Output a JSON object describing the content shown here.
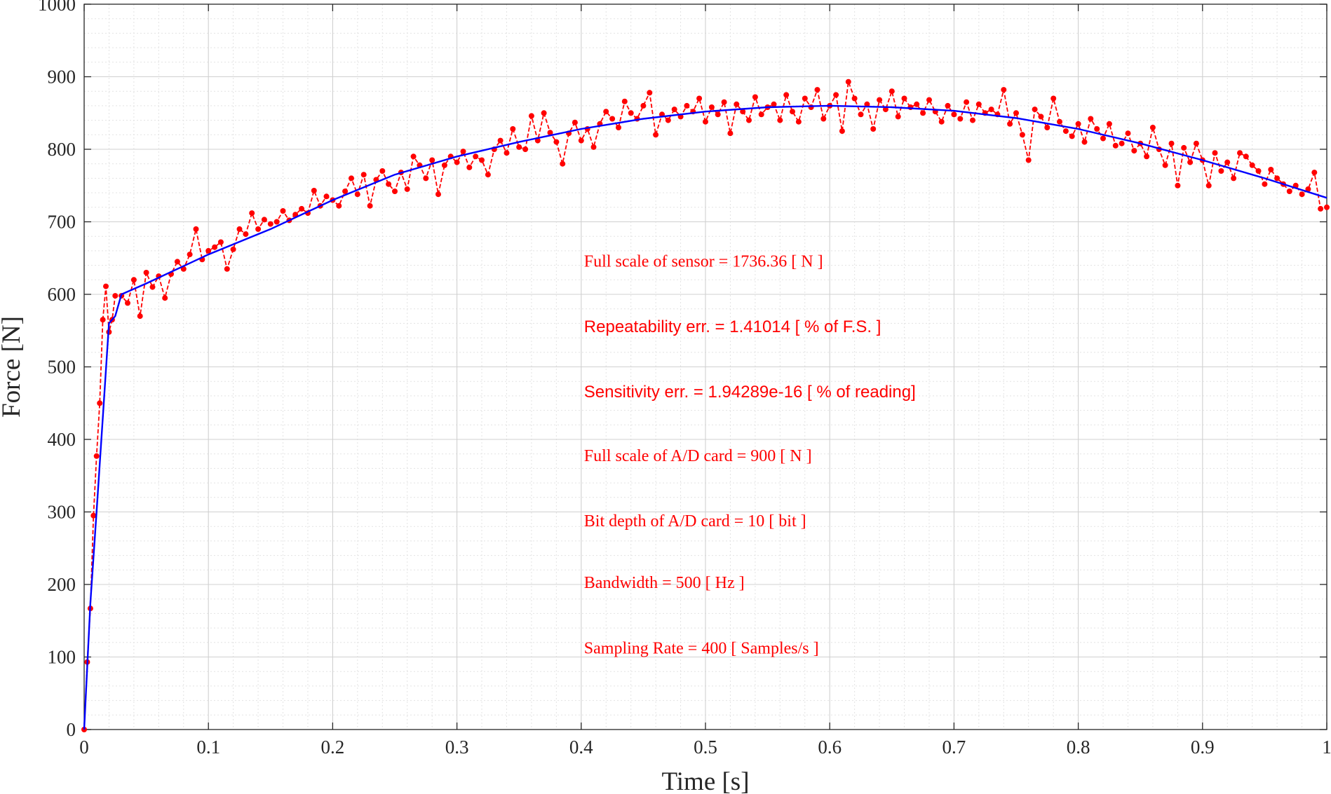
{
  "chart_data": {
    "type": "line",
    "xlabel": "Time [s]",
    "ylabel": "Force [N]",
    "xlim": [
      0,
      1
    ],
    "ylim": [
      0,
      1000
    ],
    "x_ticks": [
      "0",
      "0.1",
      "0.2",
      "0.3",
      "0.4",
      "0.5",
      "0.6",
      "0.7",
      "0.8",
      "0.9",
      "1"
    ],
    "y_ticks": [
      "0",
      "100",
      "200",
      "300",
      "400",
      "500",
      "600",
      "700",
      "800",
      "900",
      "1000"
    ],
    "grid": true,
    "minor_grid": true,
    "legend": "none",
    "colors": {
      "true_signal": "#0000ff",
      "measured": "#ff0000",
      "annotations": "#ff0000",
      "axes": "#262626"
    },
    "series": [
      {
        "style": "solid line",
        "color": "#0000ff",
        "points": [
          [
            0.0,
            0
          ],
          [
            0.005,
            175
          ],
          [
            0.01,
            300
          ],
          [
            0.015,
            430
          ],
          [
            0.02,
            560
          ],
          [
            0.025,
            570
          ],
          [
            0.03,
            600
          ],
          [
            0.05,
            615
          ],
          [
            0.1,
            655
          ],
          [
            0.15,
            690
          ],
          [
            0.2,
            730
          ],
          [
            0.25,
            765
          ],
          [
            0.3,
            790
          ],
          [
            0.35,
            810
          ],
          [
            0.4,
            828
          ],
          [
            0.45,
            842
          ],
          [
            0.5,
            852
          ],
          [
            0.55,
            858
          ],
          [
            0.6,
            860
          ],
          [
            0.65,
            858
          ],
          [
            0.7,
            853
          ],
          [
            0.75,
            843
          ],
          [
            0.8,
            828
          ],
          [
            0.85,
            808
          ],
          [
            0.9,
            785
          ],
          [
            0.95,
            760
          ],
          [
            1.0,
            733
          ]
        ]
      },
      {
        "style": "dashed line with dot markers",
        "color": "#ff0000",
        "points": [
          [
            0.0,
            0
          ],
          [
            0.0025,
            93
          ],
          [
            0.005,
            167
          ],
          [
            0.0075,
            295
          ],
          [
            0.01,
            377
          ],
          [
            0.0125,
            450
          ],
          [
            0.015,
            565
          ],
          [
            0.0175,
            611
          ],
          [
            0.02,
            548
          ],
          [
            0.0225,
            565
          ],
          [
            0.025,
            598
          ],
          [
            0.03,
            598
          ],
          [
            0.035,
            588
          ],
          [
            0.04,
            620
          ],
          [
            0.045,
            570
          ],
          [
            0.05,
            630
          ],
          [
            0.055,
            610
          ],
          [
            0.06,
            625
          ],
          [
            0.065,
            595
          ],
          [
            0.07,
            628
          ],
          [
            0.075,
            645
          ],
          [
            0.08,
            635
          ],
          [
            0.085,
            655
          ],
          [
            0.09,
            690
          ],
          [
            0.095,
            648
          ],
          [
            0.1,
            660
          ],
          [
            0.105,
            665
          ],
          [
            0.11,
            672
          ],
          [
            0.115,
            635
          ],
          [
            0.12,
            662
          ],
          [
            0.125,
            690
          ],
          [
            0.13,
            683
          ],
          [
            0.135,
            712
          ],
          [
            0.14,
            690
          ],
          [
            0.145,
            703
          ],
          [
            0.15,
            697
          ],
          [
            0.155,
            700
          ],
          [
            0.16,
            715
          ],
          [
            0.165,
            702
          ],
          [
            0.17,
            710
          ],
          [
            0.175,
            718
          ],
          [
            0.18,
            712
          ],
          [
            0.185,
            743
          ],
          [
            0.19,
            722
          ],
          [
            0.195,
            735
          ],
          [
            0.2,
            730
          ],
          [
            0.205,
            722
          ],
          [
            0.21,
            742
          ],
          [
            0.215,
            760
          ],
          [
            0.22,
            738
          ],
          [
            0.225,
            765
          ],
          [
            0.23,
            722
          ],
          [
            0.235,
            758
          ],
          [
            0.24,
            770
          ],
          [
            0.245,
            752
          ],
          [
            0.25,
            742
          ],
          [
            0.255,
            768
          ],
          [
            0.26,
            745
          ],
          [
            0.265,
            790
          ],
          [
            0.27,
            778
          ],
          [
            0.275,
            760
          ],
          [
            0.28,
            785
          ],
          [
            0.285,
            738
          ],
          [
            0.29,
            778
          ],
          [
            0.295,
            790
          ],
          [
            0.3,
            782
          ],
          [
            0.305,
            797
          ],
          [
            0.31,
            775
          ],
          [
            0.315,
            790
          ],
          [
            0.32,
            785
          ],
          [
            0.325,
            765
          ],
          [
            0.33,
            800
          ],
          [
            0.335,
            812
          ],
          [
            0.34,
            795
          ],
          [
            0.345,
            828
          ],
          [
            0.35,
            803
          ],
          [
            0.355,
            800
          ],
          [
            0.36,
            846
          ],
          [
            0.365,
            812
          ],
          [
            0.37,
            850
          ],
          [
            0.375,
            823
          ],
          [
            0.38,
            810
          ],
          [
            0.385,
            780
          ],
          [
            0.39,
            822
          ],
          [
            0.395,
            837
          ],
          [
            0.4,
            812
          ],
          [
            0.405,
            828
          ],
          [
            0.41,
            803
          ],
          [
            0.415,
            835
          ],
          [
            0.42,
            852
          ],
          [
            0.425,
            842
          ],
          [
            0.43,
            830
          ],
          [
            0.435,
            866
          ],
          [
            0.44,
            850
          ],
          [
            0.445,
            842
          ],
          [
            0.45,
            860
          ],
          [
            0.455,
            878
          ],
          [
            0.46,
            820
          ],
          [
            0.465,
            848
          ],
          [
            0.47,
            840
          ],
          [
            0.475,
            855
          ],
          [
            0.48,
            845
          ],
          [
            0.485,
            860
          ],
          [
            0.49,
            852
          ],
          [
            0.495,
            870
          ],
          [
            0.5,
            838
          ],
          [
            0.505,
            858
          ],
          [
            0.51,
            848
          ],
          [
            0.515,
            865
          ],
          [
            0.52,
            822
          ],
          [
            0.525,
            862
          ],
          [
            0.53,
            852
          ],
          [
            0.535,
            840
          ],
          [
            0.54,
            872
          ],
          [
            0.545,
            848
          ],
          [
            0.55,
            858
          ],
          [
            0.555,
            862
          ],
          [
            0.56,
            840
          ],
          [
            0.565,
            875
          ],
          [
            0.57,
            852
          ],
          [
            0.575,
            838
          ],
          [
            0.58,
            870
          ],
          [
            0.585,
            858
          ],
          [
            0.59,
            882
          ],
          [
            0.595,
            842
          ],
          [
            0.6,
            860
          ],
          [
            0.605,
            875
          ],
          [
            0.61,
            825
          ],
          [
            0.615,
            893
          ],
          [
            0.62,
            870
          ],
          [
            0.625,
            848
          ],
          [
            0.63,
            862
          ],
          [
            0.635,
            828
          ],
          [
            0.64,
            868
          ],
          [
            0.645,
            855
          ],
          [
            0.65,
            880
          ],
          [
            0.655,
            845
          ],
          [
            0.66,
            870
          ],
          [
            0.665,
            858
          ],
          [
            0.67,
            862
          ],
          [
            0.675,
            850
          ],
          [
            0.68,
            868
          ],
          [
            0.685,
            852
          ],
          [
            0.69,
            838
          ],
          [
            0.695,
            860
          ],
          [
            0.7,
            848
          ],
          [
            0.705,
            842
          ],
          [
            0.71,
            865
          ],
          [
            0.715,
            840
          ],
          [
            0.72,
            862
          ],
          [
            0.725,
            850
          ],
          [
            0.73,
            855
          ],
          [
            0.735,
            848
          ],
          [
            0.74,
            882
          ],
          [
            0.745,
            835
          ],
          [
            0.75,
            850
          ],
          [
            0.755,
            820
          ],
          [
            0.76,
            785
          ],
          [
            0.765,
            855
          ],
          [
            0.77,
            845
          ],
          [
            0.775,
            830
          ],
          [
            0.78,
            870
          ],
          [
            0.785,
            838
          ],
          [
            0.79,
            825
          ],
          [
            0.795,
            818
          ],
          [
            0.8,
            835
          ],
          [
            0.805,
            810
          ],
          [
            0.81,
            842
          ],
          [
            0.815,
            828
          ],
          [
            0.82,
            815
          ],
          [
            0.825,
            835
          ],
          [
            0.83,
            805
          ],
          [
            0.835,
            808
          ],
          [
            0.84,
            822
          ],
          [
            0.845,
            798
          ],
          [
            0.85,
            808
          ],
          [
            0.855,
            790
          ],
          [
            0.86,
            830
          ],
          [
            0.865,
            800
          ],
          [
            0.87,
            778
          ],
          [
            0.875,
            808
          ],
          [
            0.88,
            750
          ],
          [
            0.885,
            802
          ],
          [
            0.89,
            782
          ],
          [
            0.895,
            808
          ],
          [
            0.9,
            785
          ],
          [
            0.905,
            750
          ],
          [
            0.91,
            795
          ],
          [
            0.915,
            770
          ],
          [
            0.92,
            782
          ],
          [
            0.925,
            760
          ],
          [
            0.93,
            795
          ],
          [
            0.935,
            790
          ],
          [
            0.94,
            778
          ],
          [
            0.945,
            770
          ],
          [
            0.95,
            752
          ],
          [
            0.955,
            772
          ],
          [
            0.96,
            760
          ],
          [
            0.965,
            752
          ],
          [
            0.97,
            742
          ],
          [
            0.975,
            750
          ],
          [
            0.98,
            738
          ],
          [
            0.985,
            745
          ],
          [
            0.99,
            768
          ],
          [
            0.995,
            718
          ],
          [
            1.0,
            720
          ]
        ]
      }
    ],
    "annotations": [
      {
        "text": "Full scale of sensor = 1736.36 [ N ]",
        "x": 0.4,
        "y": 638,
        "font": "serif"
      },
      {
        "text": "Repeatability err. = 1.41014 [ % of F.S. ]",
        "x": 0.4,
        "y": 548,
        "font": "sans"
      },
      {
        "text": "Sensitivity err. = 1.94289e-16 [ % of reading]",
        "x": 0.4,
        "y": 458,
        "font": "sans"
      },
      {
        "text": "Full scale of A/D card = 900 [ N ]",
        "x": 0.4,
        "y": 370,
        "font": "serif"
      },
      {
        "text": "Bit depth of A/D card = 10 [ bit ]",
        "x": 0.4,
        "y": 280,
        "font": "serif"
      },
      {
        "text": "Bandwidth = 500 [ Hz ]",
        "x": 0.4,
        "y": 195,
        "font": "serif"
      },
      {
        "text": "Sampling Rate = 400 [ Samples/s ]",
        "x": 0.4,
        "y": 105,
        "font": "serif"
      }
    ]
  }
}
